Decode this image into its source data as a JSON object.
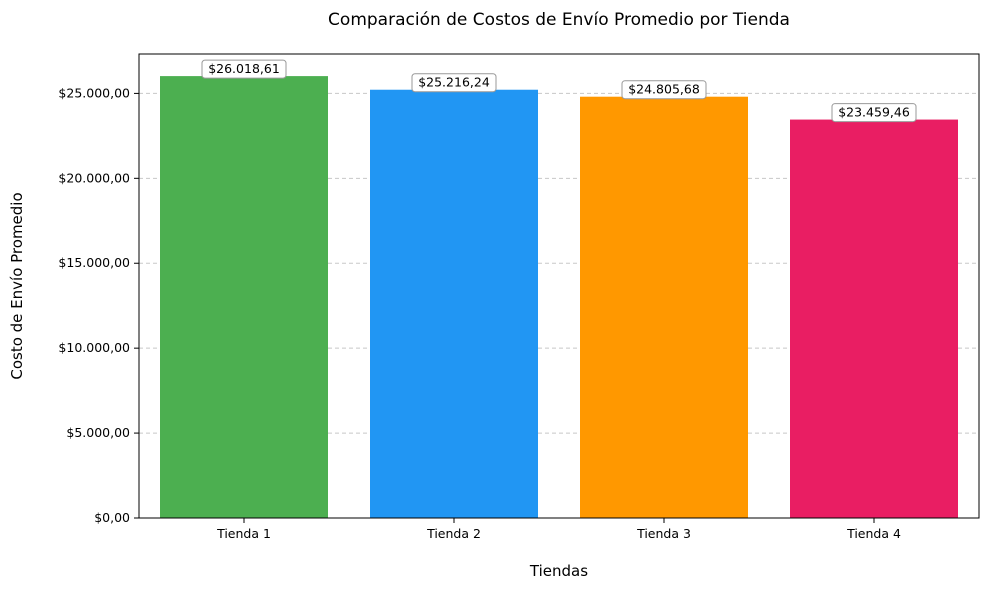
{
  "chart_data": {
    "type": "bar",
    "title": "Comparación de Costos de Envío Promedio por Tienda",
    "xlabel": "Tiendas",
    "ylabel": "Costo de Envío Promedio",
    "categories": [
      "Tienda 1",
      "Tienda 2",
      "Tienda 3",
      "Tienda 4"
    ],
    "values": [
      26018.61,
      25216.24,
      24805.68,
      23459.46
    ],
    "value_labels": [
      "$26.018,61",
      "$25.216,24",
      "$24.805,68",
      "$23.459,46"
    ],
    "bar_colors": [
      "#4caf50",
      "#2196f3",
      "#ff9800",
      "#e91e63"
    ],
    "ylim": [
      0,
      27320
    ],
    "yticks": [
      0,
      5000,
      10000,
      15000,
      20000,
      25000
    ],
    "ytick_labels": [
      "$0,00",
      "$5.000,00",
      "$10.000,00",
      "$15.000,00",
      "$20.000,00",
      "$25.000,00"
    ],
    "grid": "y-dashed",
    "legend": "none"
  }
}
